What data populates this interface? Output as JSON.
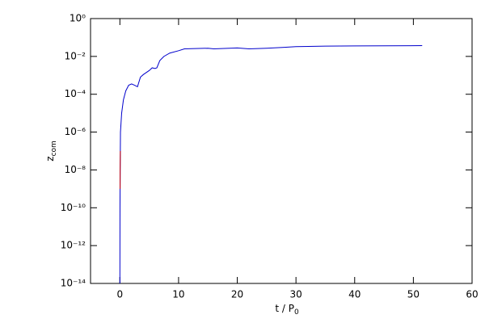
{
  "chart_data": {
    "type": "line",
    "xlabel": {
      "main": "t / P",
      "subscript": "0"
    },
    "ylabel": {
      "main": "z",
      "subscript": "com"
    },
    "xlim": [
      -5,
      60
    ],
    "xticks": [
      0,
      10,
      20,
      30,
      40,
      50,
      60
    ],
    "ylim": [
      1e-14,
      1
    ],
    "ylog": true,
    "yticks": [
      {
        "value": 1e-14,
        "label": "10⁻¹⁴"
      },
      {
        "value": 1e-12,
        "label": "10⁻¹²"
      },
      {
        "value": 1e-10,
        "label": "10⁻¹⁰"
      },
      {
        "value": 1e-08,
        "label": "10⁻⁸"
      },
      {
        "value": 1e-06,
        "label": "10⁻⁶"
      },
      {
        "value": 0.0001,
        "label": "10⁻⁴"
      },
      {
        "value": 0.01,
        "label": "10⁻²"
      },
      {
        "value": 1,
        "label": "10⁰"
      }
    ],
    "series": [
      {
        "color": "#0000cc",
        "x": [
          0,
          0.02,
          0.05,
          0.1,
          0.3,
          0.6,
          1,
          1.5,
          2,
          2.5,
          3,
          3.5,
          4,
          5,
          5.5,
          6,
          6.3,
          6.8,
          7.5,
          8.5,
          10,
          11,
          15,
          16,
          20,
          22,
          25,
          28,
          30,
          35,
          40,
          51.5
        ],
        "values": [
          1e-14,
          1e-10,
          1e-08,
          1e-06,
          1e-05,
          5e-05,
          0.00015,
          0.0003,
          0.00035,
          0.0003,
          0.00025,
          0.0008,
          0.0011,
          0.0018,
          0.0025,
          0.0023,
          0.0025,
          0.006,
          0.01,
          0.015,
          0.02,
          0.025,
          0.027,
          0.025,
          0.028,
          0.025,
          0.027,
          0.03,
          0.033,
          0.035,
          0.036,
          0.037
        ]
      },
      {
        "color": "#cc0000",
        "x": [
          0.04,
          0.05,
          0.08
        ],
        "values": [
          1e-09,
          1e-08,
          1e-07
        ]
      }
    ]
  }
}
